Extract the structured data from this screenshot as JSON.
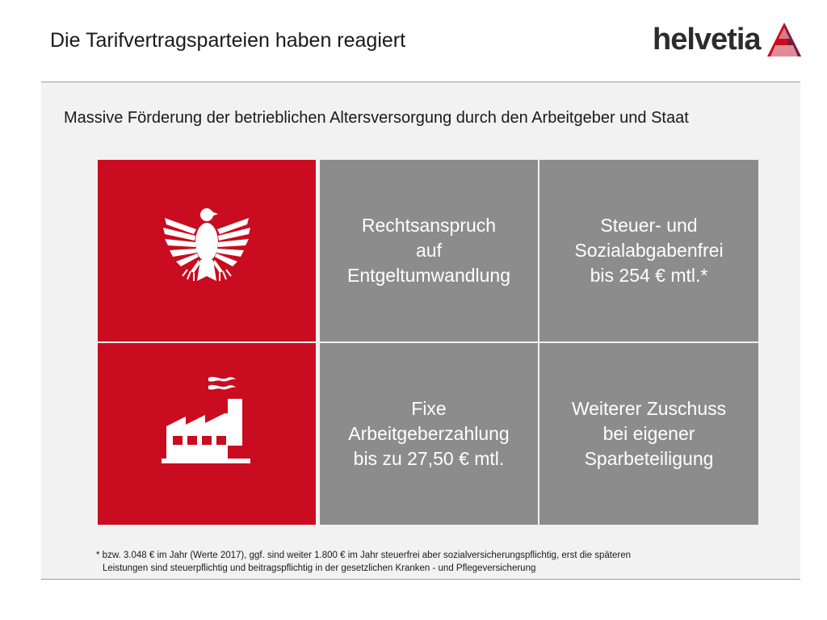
{
  "header": {
    "title": "Die Tarifvertragsparteien haben reagiert",
    "logo_text": "helvetia",
    "logo_icon": "helvetia-triangle-mark",
    "colors": {
      "brand_red": "#c90c1f",
      "tile_grey": "#8c8c8c",
      "panel_bg": "#f2f2f2"
    }
  },
  "main": {
    "subtitle": "Massive Förderung der betrieblichen Altersversorgung durch den Arbeitgeber und Staat",
    "tiles": {
      "state_icon": "federal-eagle-icon",
      "employer_icon": "factory-icon",
      "t1": "Rechtsanspruch\nauf\nEntgeltumwandlung",
      "t2": "Steuer-  und\nSozialabgabenfrei\nbis 254 € mtl.*",
      "t3": "Fixe\nArbeitgeberzahlung\nbis zu 27,50 € mtl.",
      "t4": "Weiterer Zuschuss\nbei eigener\nSparbeteiligung"
    },
    "footnote_line1": "* bzw. 3.048 € im Jahr (Werte 2017), ggf. sind weiter 1.800 € im Jahr steuerfrei aber sozialversicherungspflichtig, erst die späteren",
    "footnote_line2": "Leistungen sind steuerpflichtig und beitragspflichtig in der gesetzlichen Kranken - und Pflegeversicherung"
  }
}
